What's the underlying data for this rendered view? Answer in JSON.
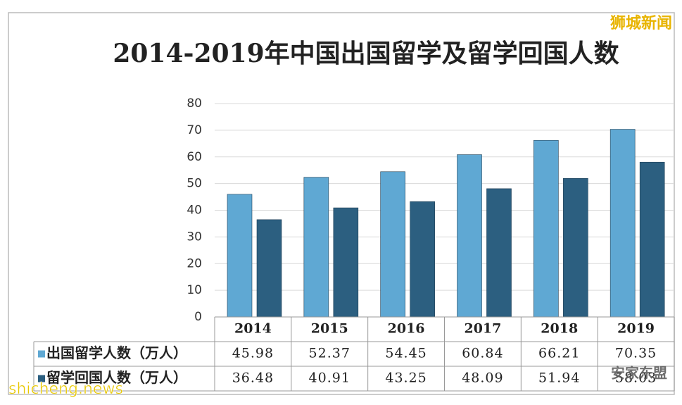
{
  "chart_data": {
    "type": "bar",
    "title": "2014-2019年中国出国留学及留学回国人数",
    "categories": [
      "2014",
      "2015",
      "2016",
      "2017",
      "2018",
      "2019"
    ],
    "series": [
      {
        "name": "出国留学人数（万人）",
        "color": "#5fa8d3",
        "values": [
          45.98,
          52.37,
          54.45,
          60.84,
          66.21,
          70.35
        ]
      },
      {
        "name": "留学回国人数（万人）",
        "color": "#2c5f80",
        "values": [
          36.48,
          40.91,
          43.25,
          48.09,
          51.94,
          58.03
        ]
      }
    ],
    "ylim": [
      0,
      80
    ],
    "yticks": [
      0,
      10,
      20,
      30,
      40,
      50,
      60,
      70,
      80
    ],
    "grid": true,
    "data_table": true
  },
  "watermarks": [
    "狮城新闻",
    "安家东盟",
    "shicheng.news"
  ]
}
